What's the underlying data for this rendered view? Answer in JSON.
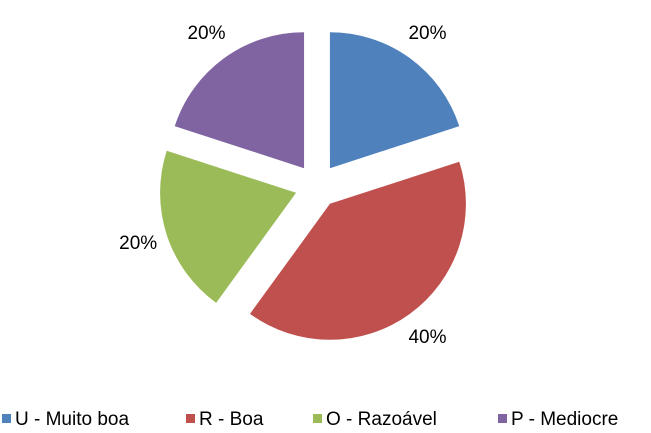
{
  "chart_data": {
    "type": "pie",
    "categories": [
      "U - Muito boa",
      "R - Boa",
      "O - Razoável",
      "P - Mediocre"
    ],
    "values": [
      20,
      40,
      20,
      20
    ],
    "value_labels": [
      "20%",
      "40%",
      "20%",
      "20%"
    ],
    "colors": [
      "#4f81bd",
      "#c0504d",
      "#9bbb59",
      "#8064a2"
    ],
    "legend": "bottom"
  }
}
